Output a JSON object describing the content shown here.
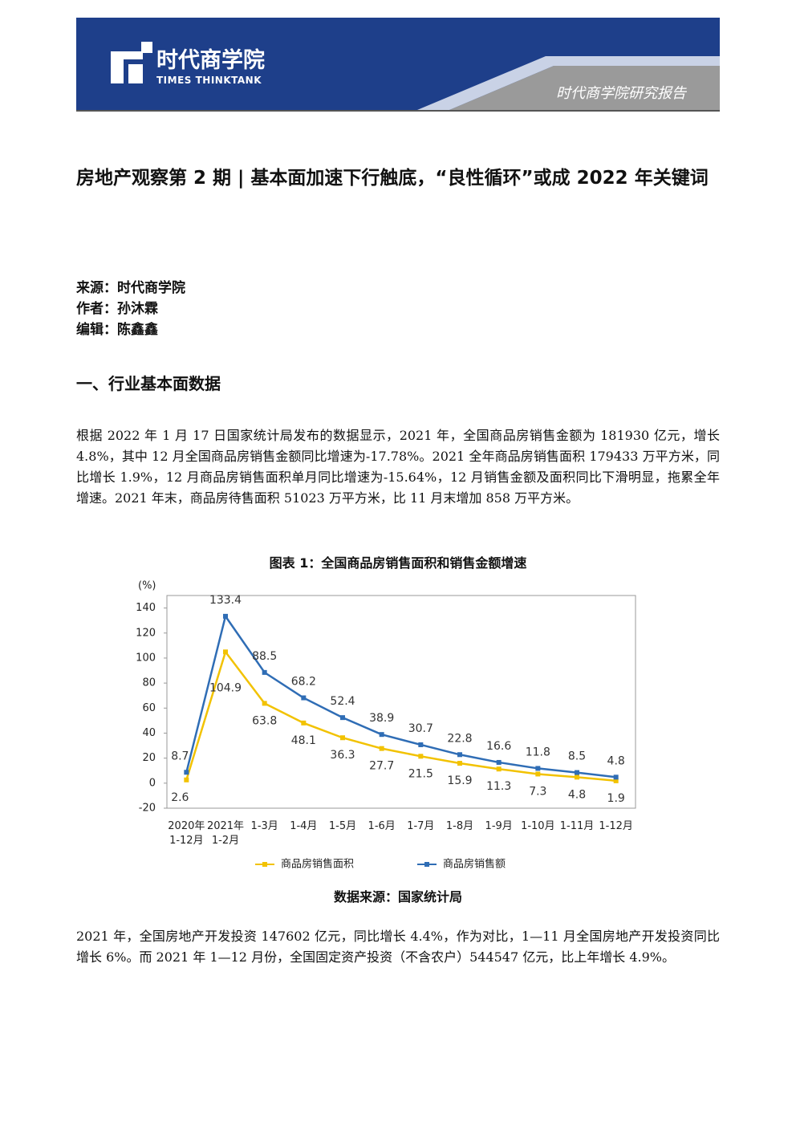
{
  "header": {
    "logo_cn": "时代商学院",
    "logo_en": "TIMES THINKTANK",
    "report_label": "时代商学院研究报告"
  },
  "title": "房地产观察第 2 期 | 基本面加速下行触底，“良性循环”或成 2022 年关键词",
  "meta": [
    "来源：时代商学院",
    "作者：孙沐霖",
    "编辑：陈鑫鑫"
  ],
  "section_heading": "一、行业基本面数据",
  "paragraphs": [
    "根据 2022 年 1 月 17 日国家统计局发布的数据显示，2021 年，全国商品房销售金额为 181930 亿元，增长 4.8%，其中 12 月全国商品房销售金额同比增速为-17.78%。2021 全年商品房销售面积 179433 万平方米，同比增长 1.9%，12 月商品房销售面积单月同比增速为-15.64%，12 月销售金额及面积同比下滑明显，拖累全年增速。2021 年末，商品房待售面积 51023 万平方米，比 11 月末增加 858 万平方米。"
  ],
  "figure_caption": "图表 1：全国商品房销售面积和销售金额增速",
  "chart_data": {
    "type": "line",
    "y_unit": "(%)",
    "categories": [
      "2020年\n1-12月",
      "2021年\n1-2月",
      "1-3月",
      "1-4月",
      "1-5月",
      "1-6月",
      "1-7月",
      "1-8月",
      "1-9月",
      "1-10月",
      "1-11月",
      "1-12月"
    ],
    "series": [
      {
        "name": "商品房销售面积",
        "color": "#f2c200",
        "values": [
          2.6,
          104.9,
          63.8,
          48.1,
          36.3,
          27.7,
          21.5,
          15.9,
          11.3,
          7.3,
          4.8,
          1.9
        ]
      },
      {
        "name": "商品房销售额",
        "color": "#2f6db5",
        "values": [
          8.7,
          133.4,
          88.5,
          68.2,
          52.4,
          38.9,
          30.7,
          22.8,
          16.6,
          11.8,
          8.5,
          4.8
        ]
      }
    ],
    "ylim": [
      -20,
      150
    ],
    "yticks": [
      -20,
      0,
      20,
      40,
      60,
      80,
      100,
      120,
      140
    ],
    "legend": "bottom"
  },
  "source_note": "数据来源：国家统计局",
  "paragraphs2": [
    "2021 年，全国房地产开发投资 147602 亿元，同比增长 4.4%，作为对比，1—11 月全国房地产开发投资同比增长 6%。而 2021 年 1—12 月份，全国固定资产投资（不含农户）544547 亿元，比上年增长 4.9%。"
  ]
}
